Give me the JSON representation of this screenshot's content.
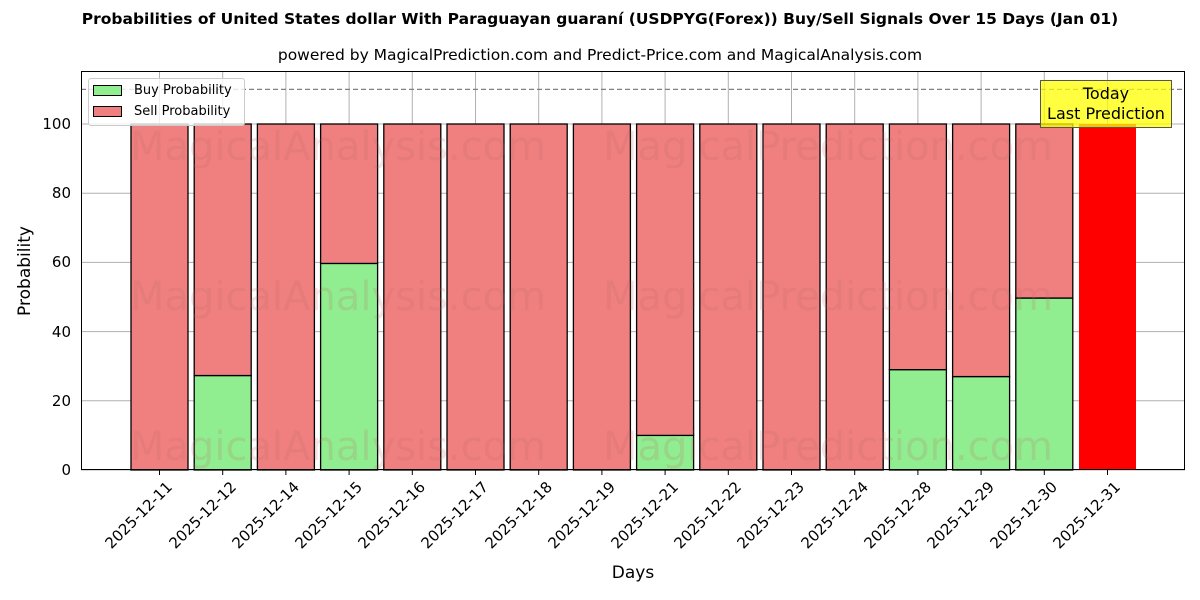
{
  "chart_data": {
    "type": "bar",
    "stacked": true,
    "title": "Probabilities of United States dollar With Paraguayan guaraní (USDPYG(Forex)) Buy/Sell Signals Over 15 Days (Jan 01)",
    "subtitle": "powered by MagicalPrediction.com and Predict-Price.com and MagicalAnalysis.com",
    "xlabel": "Days",
    "ylabel": "Probability",
    "ylim": [
      0,
      115
    ],
    "yticks": [
      0,
      20,
      40,
      60,
      80,
      100
    ],
    "grid": true,
    "legend_position": "upper left",
    "categories": [
      "2025-12-11",
      "2025-12-12",
      "2025-12-14",
      "2025-12-15",
      "2025-12-16",
      "2025-12-17",
      "2025-12-18",
      "2025-12-19",
      "2025-12-21",
      "2025-12-22",
      "2025-12-23",
      "2025-12-24",
      "2025-12-28",
      "2025-12-29",
      "2025-12-30",
      "2025-12-31"
    ],
    "series": [
      {
        "name": "Buy Probability",
        "color": "#90ee90",
        "values": [
          0,
          27.3,
          0,
          59.7,
          0,
          0,
          0,
          0,
          10.0,
          0,
          0,
          0,
          29.0,
          27.0,
          49.7,
          0
        ]
      },
      {
        "name": "Sell Probability",
        "color": "#f08080",
        "values": [
          100,
          72.7,
          100,
          40.3,
          100,
          100,
          100,
          100,
          90.0,
          100,
          100,
          100,
          71.0,
          73.0,
          50.3,
          100
        ]
      }
    ],
    "highlight": {
      "category": "2025-12-31",
      "color": "#ff0000"
    },
    "reference_line": {
      "y": 110,
      "style": "dashed",
      "color": "#808080"
    },
    "annotation": {
      "line1": "Today",
      "line2": "Last Prediction",
      "background": "#ffff00"
    },
    "watermarks": [
      "MagicalAnalysis.com",
      "MagicalPrediction.com"
    ]
  }
}
